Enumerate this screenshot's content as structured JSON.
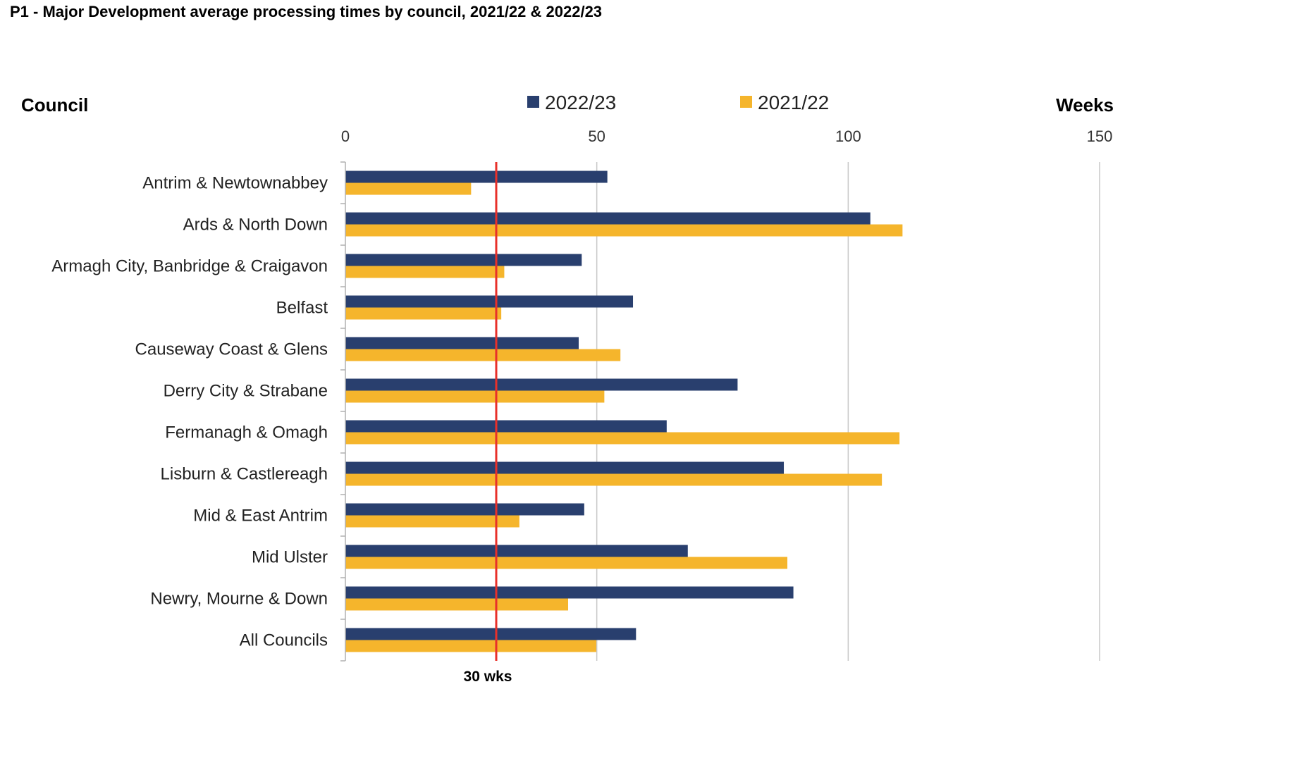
{
  "colors": {
    "series_2022_23": "#293f6e",
    "series_2021_22": "#f5b52c",
    "reference_line": "#e8302a",
    "grid": "#c8c8c8"
  },
  "chart_data": {
    "type": "bar",
    "orientation": "horizontal",
    "title": "P1 - Major Development average processing times by council, 2021/22 & 2022/23",
    "ylabel": "Council",
    "xlabel": "Weeks",
    "xlim": [
      0,
      150
    ],
    "x_ticks": [
      0,
      50,
      100,
      150
    ],
    "grid": true,
    "legend_position": "top",
    "categories": [
      "Antrim & Newtownabbey",
      "Ards & North Down",
      "Armagh City, Banbridge & Craigavon",
      "Belfast",
      "Causeway Coast & Glens",
      "Derry City & Strabane",
      "Fermanagh & Omagh",
      "Lisburn & Castlereagh",
      "Mid & East Antrim",
      "Mid Ulster",
      "Newry, Mourne & Down",
      "All Councils"
    ],
    "series": [
      {
        "name": "2022/23",
        "values": [
          52.1,
          104.4,
          47.0,
          57.2,
          46.4,
          78.0,
          63.9,
          87.2,
          47.5,
          68.1,
          89.1,
          57.8
        ]
      },
      {
        "name": "2021/22",
        "values": [
          25.0,
          110.8,
          31.6,
          31.0,
          54.7,
          51.5,
          110.2,
          106.7,
          34.6,
          87.9,
          44.3,
          49.9
        ]
      }
    ],
    "reference_line": {
      "value": 30,
      "label": "30 wks"
    }
  }
}
